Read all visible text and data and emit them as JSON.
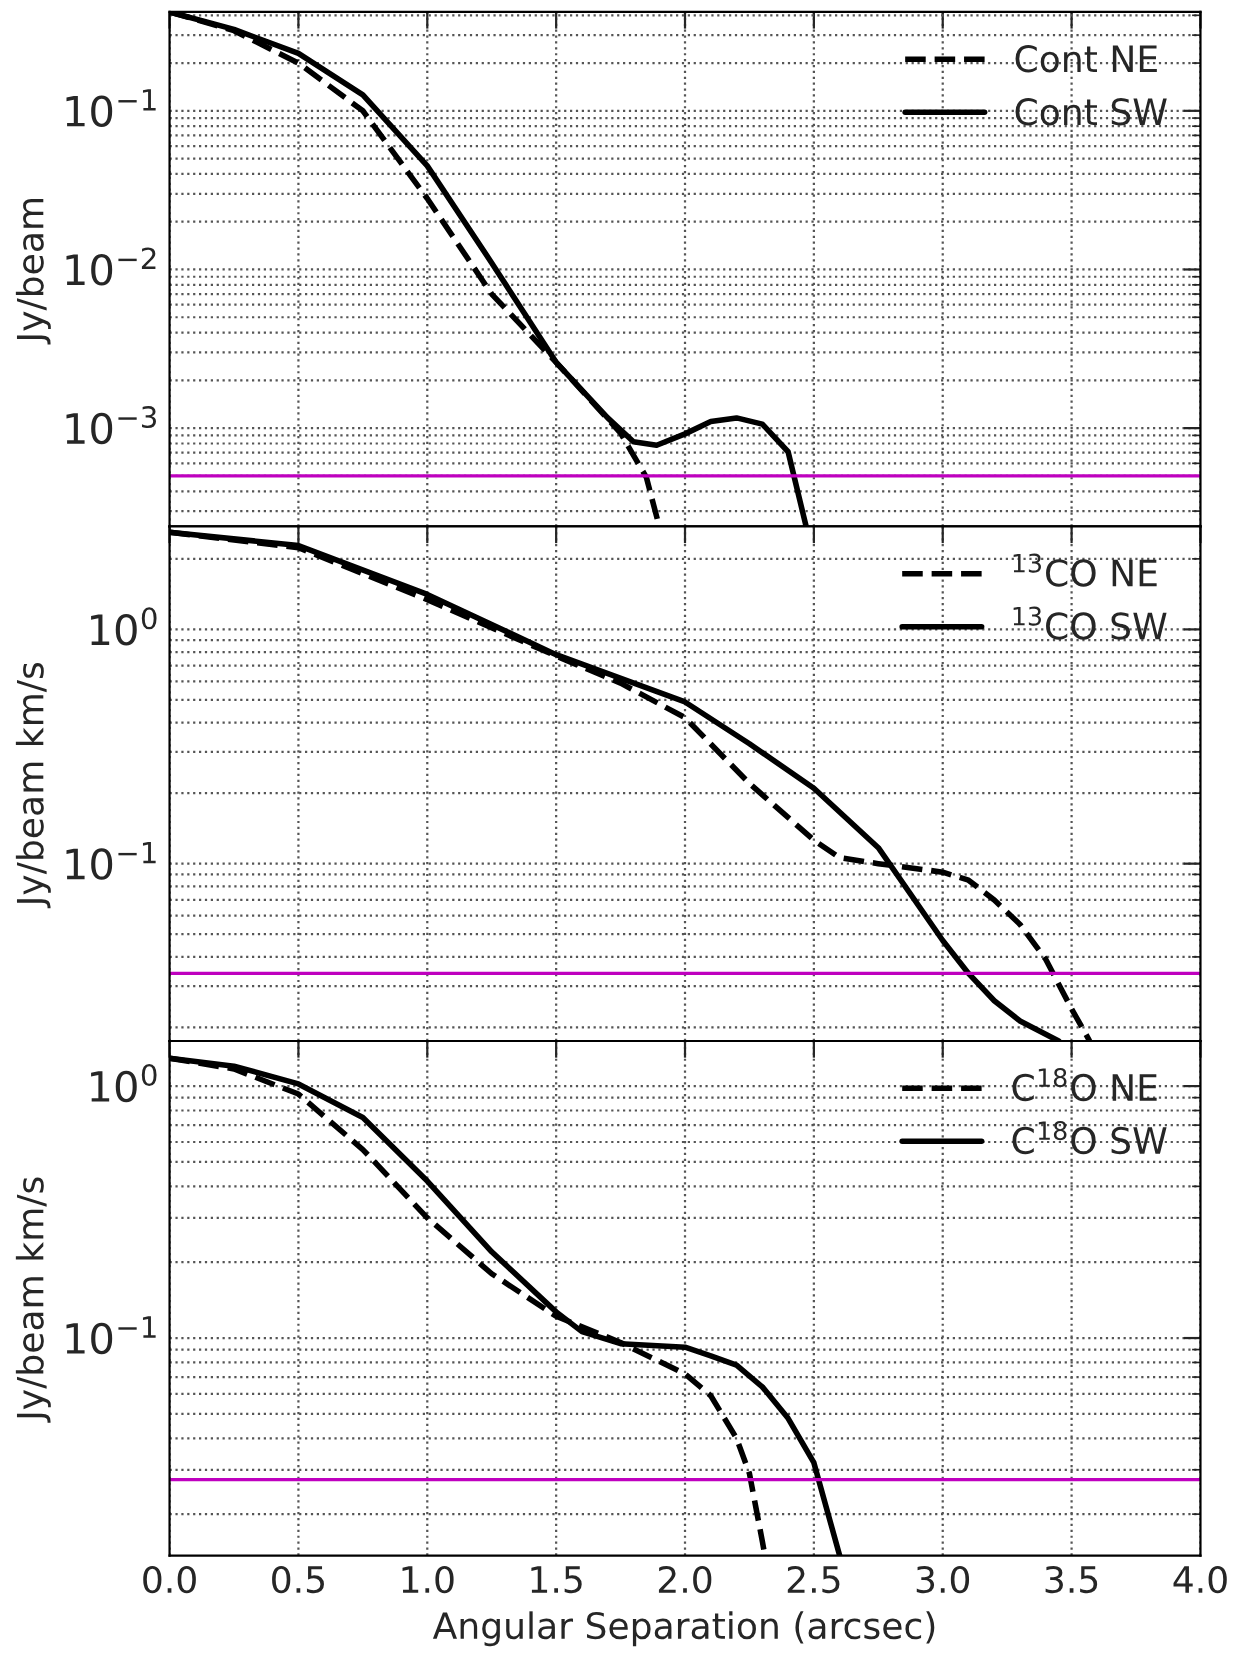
{
  "chart_data": [
    {
      "type": "line",
      "ylabel": "Jy/beam",
      "log": true,
      "grid": true,
      "legend": "top right",
      "tick_labels": "y",
      "xlim": [
        0,
        4
      ],
      "xticks": [
        0,
        0.5,
        1,
        1.5,
        2,
        2.5,
        3,
        3.5,
        4
      ],
      "ylim": [
        0.00024,
        0.42
      ],
      "yticks": [
        {
          "value": 0.001,
          "label": "10$^{−3}$"
        },
        {
          "value": 0.01,
          "label": "10$^{−2}$"
        },
        {
          "value": 0.1,
          "label": "10$^{−1}$"
        }
      ],
      "series": [
        {
          "name": "Cont NE",
          "color": "#000000",
          "line_style": "dashed",
          "x": [
            0,
            0.25,
            0.5,
            0.75,
            1.0,
            1.25,
            1.5,
            1.75,
            1.85,
            1.9
          ],
          "values": [
            0.42,
            0.32,
            0.2,
            0.1,
            0.028,
            0.007,
            0.0026,
            0.00093,
            0.00049,
            0.00024
          ]
        },
        {
          "name": "Cont SW",
          "color": "#000000",
          "line_style": "solid",
          "x": [
            0,
            0.25,
            0.5,
            0.75,
            1.0,
            1.25,
            1.5,
            1.7,
            1.8,
            1.89,
            2.0,
            2.1,
            2.2,
            2.3,
            2.4,
            2.47
          ],
          "values": [
            0.42,
            0.326,
            0.23,
            0.126,
            0.045,
            0.011,
            0.0026,
            0.00116,
            0.00082,
            0.00078,
            0.00092,
            0.0011,
            0.00116,
            0.00106,
            0.00071,
            0.00024
          ]
        }
      ],
      "ref_lines": [
        {
          "axis": "y",
          "value": 0.0005,
          "color": "#bf00bf"
        }
      ]
    },
    {
      "type": "line",
      "ylabel": "Jy/beam km/s",
      "log": true,
      "grid": true,
      "legend": "top right",
      "tick_labels": "y",
      "xlim": [
        0,
        4
      ],
      "xticks": [
        0,
        0.5,
        1,
        1.5,
        2,
        2.5,
        3,
        3.5,
        4
      ],
      "ylim": [
        0.0175,
        2.75
      ],
      "yticks": [
        {
          "value": 0.1,
          "label": "10$^{−1}$"
        },
        {
          "value": 1,
          "label": "10$^{0}$"
        }
      ],
      "series": [
        {
          "name": "$^{13}$CO NE",
          "color": "#000000",
          "line_style": "dashed",
          "x": [
            0,
            0.5,
            1.0,
            1.5,
            1.75,
            2.0,
            2.25,
            2.5,
            2.6,
            2.75,
            3.0,
            3.1,
            3.2,
            3.3,
            3.4,
            3.5,
            3.57
          ],
          "values": [
            2.6,
            2.23,
            1.34,
            0.77,
            0.59,
            0.42,
            0.22,
            0.126,
            0.106,
            0.1,
            0.092,
            0.085,
            0.07,
            0.055,
            0.039,
            0.024,
            0.0175
          ]
        },
        {
          "name": "$^{13}$CO SW",
          "color": "#000000",
          "line_style": "solid",
          "x": [
            0,
            0.5,
            1.0,
            1.5,
            2.0,
            2.25,
            2.5,
            2.75,
            3.0,
            3.1,
            3.2,
            3.3,
            3.45
          ],
          "values": [
            2.6,
            2.28,
            1.41,
            0.78,
            0.49,
            0.325,
            0.21,
            0.117,
            0.047,
            0.034,
            0.026,
            0.0213,
            0.0175
          ]
        }
      ],
      "ref_lines": [
        {
          "axis": "y",
          "value": 0.034,
          "color": "#bf00bf"
        }
      ]
    },
    {
      "type": "line",
      "ylabel": "Jy/beam km/s",
      "xlabel": "Angular Separation (arcsec)",
      "log": true,
      "grid": true,
      "legend": "top right",
      "xlim": [
        0,
        4
      ],
      "xticks": [
        {
          "value": 0,
          "label": "0.0"
        },
        {
          "value": 0.5,
          "label": "0.5"
        },
        {
          "value": 1,
          "label": "1.0"
        },
        {
          "value": 1.5,
          "label": "1.5"
        },
        {
          "value": 2,
          "label": "2.0"
        },
        {
          "value": 2.5,
          "label": "2.5"
        },
        {
          "value": 3,
          "label": "3.0"
        },
        {
          "value": 3.5,
          "label": "3.5"
        },
        {
          "value": 4,
          "label": "4.0"
        }
      ],
      "ylim": [
        0.0137,
        1.51
      ],
      "yticks": [
        {
          "value": 0.1,
          "label": "10$^{−1}$"
        },
        {
          "value": 1,
          "label": "10$^{0}$"
        }
      ],
      "series": [
        {
          "name": "C$^{18}$O NE",
          "color": "#000000",
          "line_style": "dashed",
          "x": [
            0,
            0.25,
            0.5,
            0.75,
            1.0,
            1.25,
            1.5,
            1.75,
            2.0,
            2.1,
            2.2,
            2.25,
            2.3,
            2.31
          ],
          "values": [
            1.29,
            1.17,
            0.93,
            0.56,
            0.3,
            0.18,
            0.122,
            0.096,
            0.072,
            0.059,
            0.04,
            0.029,
            0.0156,
            0.0137
          ]
        },
        {
          "name": "C$^{18}$O SW",
          "color": "#000000",
          "line_style": "solid",
          "x": [
            0,
            0.25,
            0.5,
            0.75,
            1.0,
            1.25,
            1.5,
            1.6,
            1.75,
            2.0,
            2.1,
            2.2,
            2.3,
            2.4,
            2.5,
            2.6
          ],
          "values": [
            1.29,
            1.2,
            1.02,
            0.75,
            0.42,
            0.22,
            0.127,
            0.106,
            0.095,
            0.092,
            0.085,
            0.078,
            0.064,
            0.048,
            0.032,
            0.0137
          ]
        }
      ],
      "ref_lines": [
        {
          "axis": "y",
          "value": 0.0274,
          "color": "#bf00bf"
        }
      ]
    }
  ]
}
